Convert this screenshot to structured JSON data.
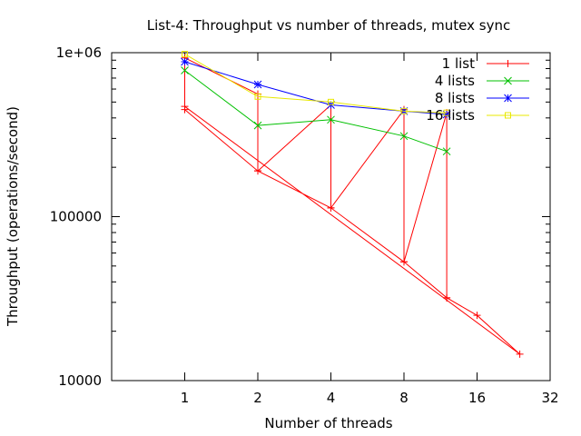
{
  "chart_data": {
    "type": "line",
    "title": "List-4: Throughput vs number of threads, mutex sync",
    "xlabel": "Number of threads",
    "ylabel": "Throughput (operations/second)",
    "x_scale": "log2",
    "y_scale": "log10",
    "xlim": [
      0.5,
      32
    ],
    "ylim": [
      10000,
      1000000
    ],
    "x_ticks": [
      {
        "value": 1,
        "label": "1"
      },
      {
        "value": 2,
        "label": "2"
      },
      {
        "value": 4,
        "label": "4"
      },
      {
        "value": 8,
        "label": "8"
      },
      {
        "value": 16,
        "label": "16"
      },
      {
        "value": 32,
        "label": "32"
      }
    ],
    "y_ticks": [
      {
        "value": 10000,
        "label": "10000"
      },
      {
        "value": 100000,
        "label": "100000"
      },
      {
        "value": 1000000,
        "label": "1e+06"
      }
    ],
    "y_minor_ticks": [
      20000,
      30000,
      40000,
      50000,
      60000,
      70000,
      80000,
      90000,
      200000,
      300000,
      400000,
      500000,
      600000,
      700000,
      800000,
      900000
    ],
    "legend_position": "top-right",
    "grid": false,
    "series": [
      {
        "name": "1 list",
        "color": "#ff0000",
        "marker": "plus",
        "points": [
          [
            1,
            450000
          ],
          [
            2,
            190000
          ],
          [
            4,
            113000
          ],
          [
            8,
            53000
          ],
          [
            12,
            32000
          ],
          [
            16,
            25000
          ],
          [
            24,
            14500
          ],
          [
            1,
            470000
          ],
          [
            1,
            930000
          ],
          [
            2,
            560000
          ],
          [
            2,
            190000
          ],
          [
            4,
            480000
          ],
          [
            4,
            113000
          ],
          [
            8,
            450000
          ],
          [
            8,
            53000
          ],
          [
            12,
            430000
          ],
          [
            12,
            32000
          ]
        ]
      },
      {
        "name": "4 lists",
        "color": "#00c000",
        "marker": "cross",
        "points": [
          [
            1,
            780000
          ],
          [
            2,
            360000
          ],
          [
            4,
            390000
          ],
          [
            8,
            310000
          ],
          [
            12,
            250000
          ]
        ]
      },
      {
        "name": "8 lists",
        "color": "#0000ff",
        "marker": "star",
        "points": [
          [
            1,
            880000
          ],
          [
            2,
            640000
          ],
          [
            4,
            480000
          ],
          [
            8,
            440000
          ],
          [
            12,
            420000
          ]
        ]
      },
      {
        "name": "16 lists",
        "color": "#e8e800",
        "marker": "box",
        "points": [
          [
            1,
            980000
          ],
          [
            2,
            540000
          ],
          [
            4,
            500000
          ],
          [
            8,
            440000
          ],
          [
            12,
            430000
          ]
        ]
      }
    ]
  }
}
